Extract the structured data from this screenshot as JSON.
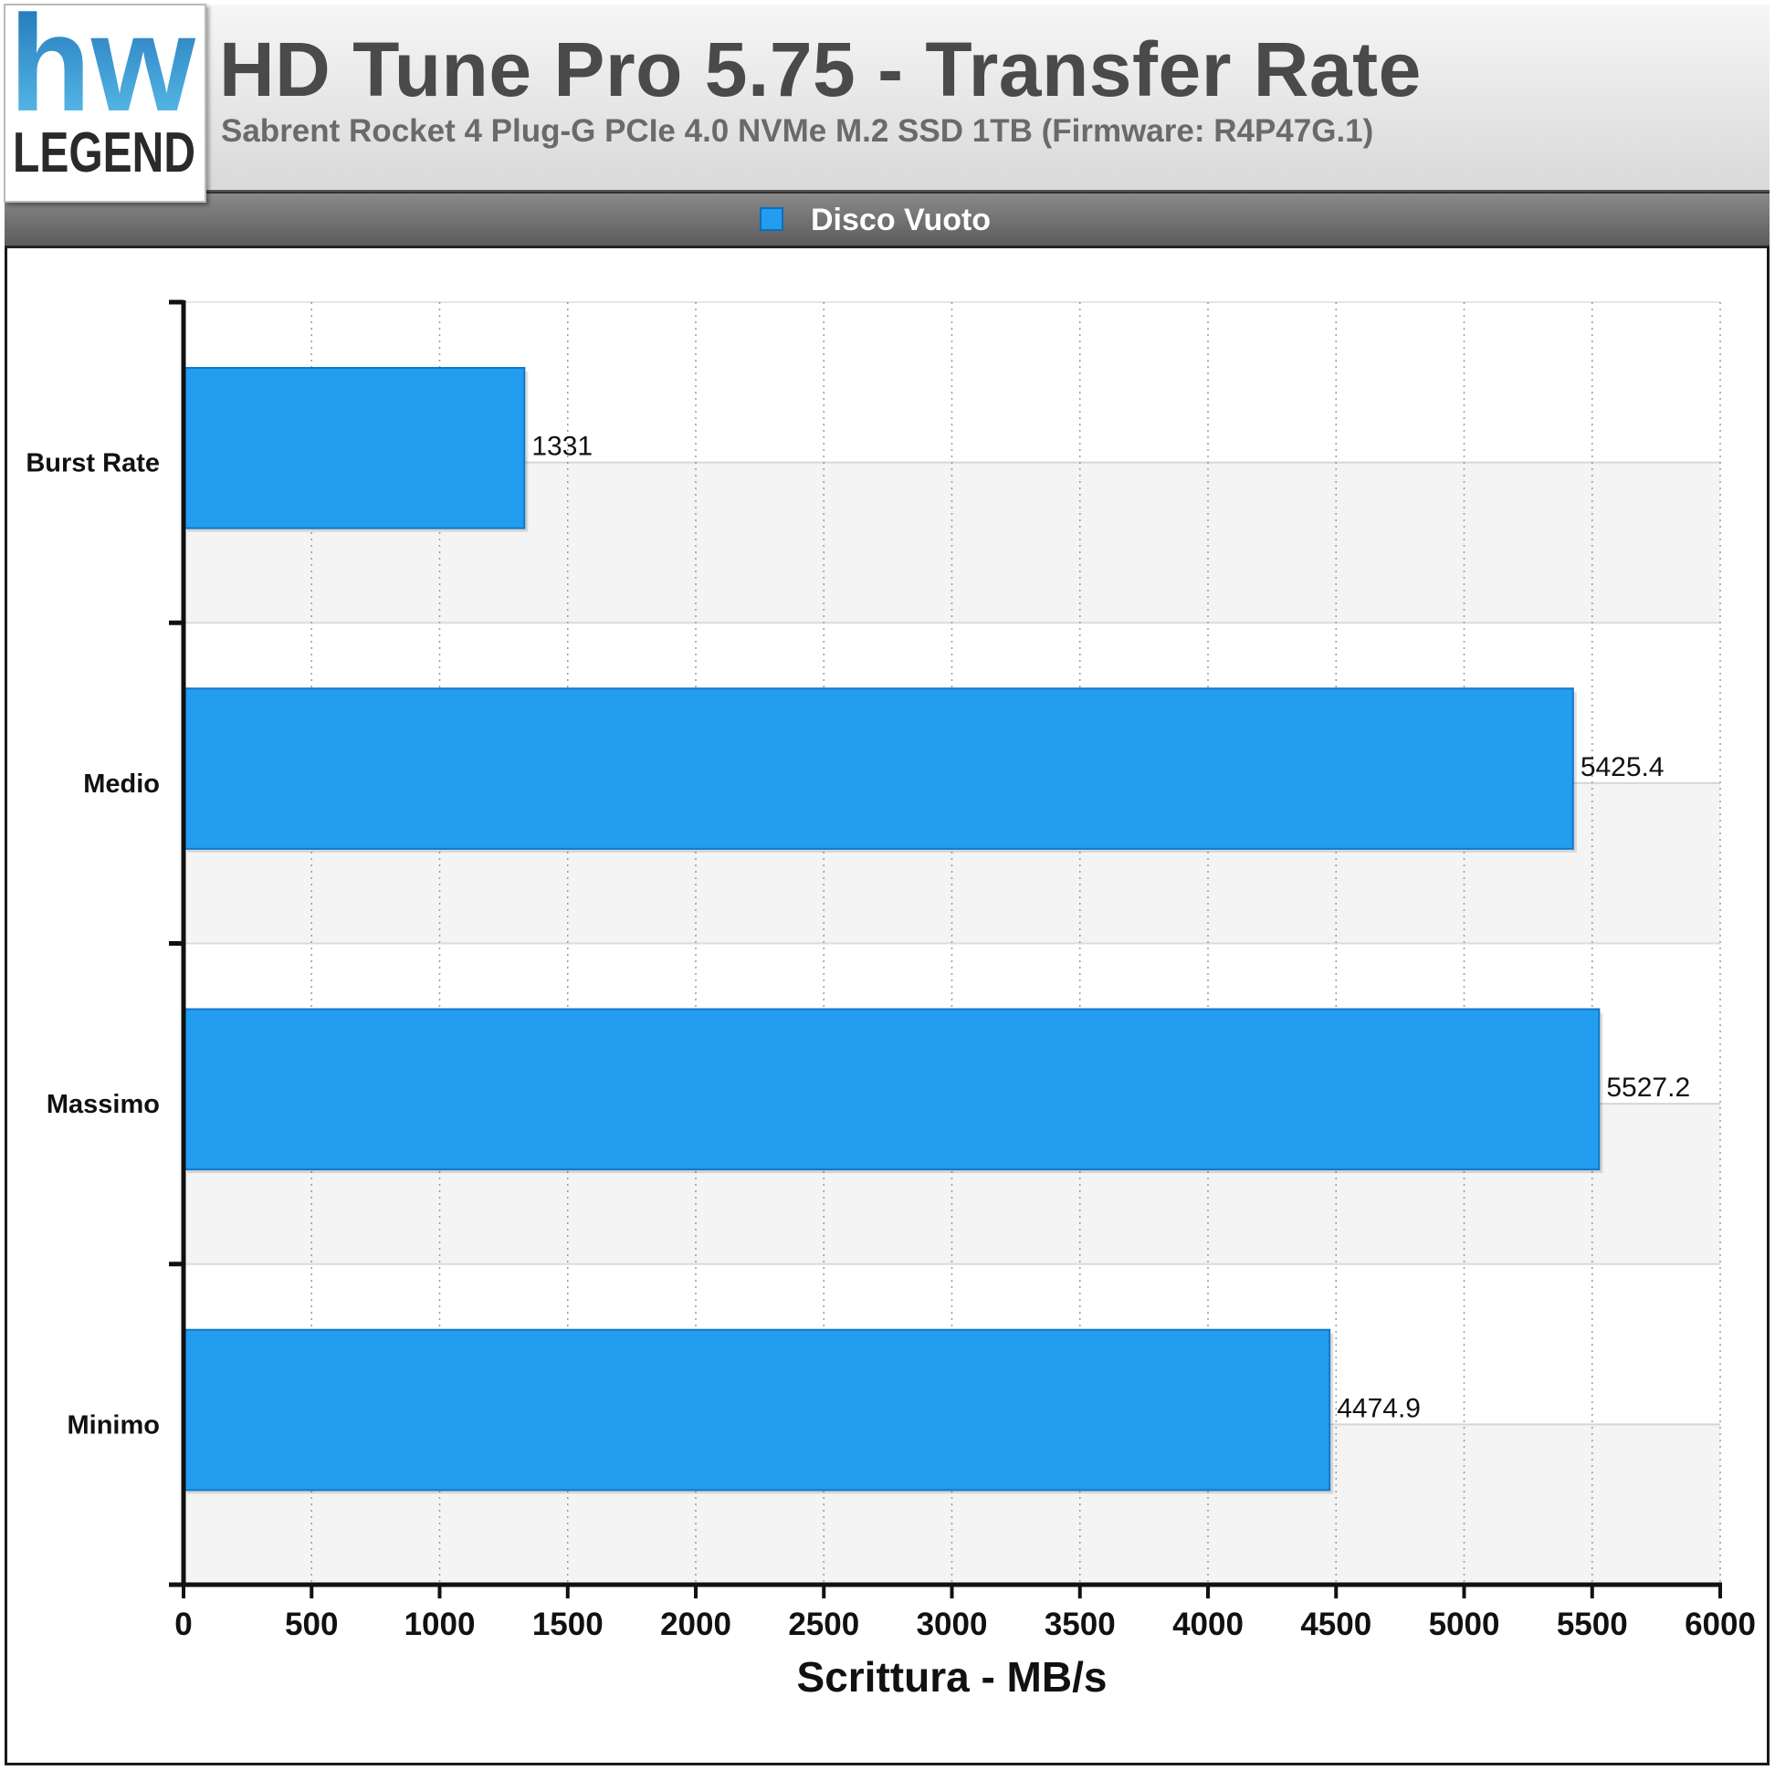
{
  "header": {
    "logo_top": "hw",
    "logo_bottom": "LEGEND",
    "title": "HD Tune Pro 5.75 - Transfer Rate",
    "subtitle": "Sabrent Rocket 4 Plug-G PCIe 4.0 NVMe M.2 SSD 1TB (Firmware: R4P47G.1)"
  },
  "legend": {
    "label": "Disco Vuoto",
    "color": "#229df0"
  },
  "chart_data": {
    "type": "bar",
    "orientation": "horizontal",
    "title": "HD Tune Pro 5.75 - Transfer Rate",
    "subtitle": "Sabrent Rocket 4 Plug-G PCIe 4.0 NVMe M.2 SSD 1TB (Firmware: R4P47G.1)",
    "categories": [
      "Burst Rate",
      "Medio",
      "Massimo",
      "Minimo"
    ],
    "series": [
      {
        "name": "Disco Vuoto",
        "values": [
          1331,
          5425.4,
          5527.2,
          4474.9
        ],
        "color": "#229df0"
      }
    ],
    "value_labels": [
      "1331",
      "5425.4",
      "5527.2",
      "4474.9"
    ],
    "xlabel": "Scrittura - MB/s",
    "ylabel": "",
    "xlim": [
      0,
      6000
    ],
    "xticks": [
      0,
      500,
      1000,
      1500,
      2000,
      2500,
      3000,
      3500,
      4000,
      4500,
      5000,
      5500,
      6000
    ],
    "grid": true,
    "legend_position": "top-center"
  }
}
